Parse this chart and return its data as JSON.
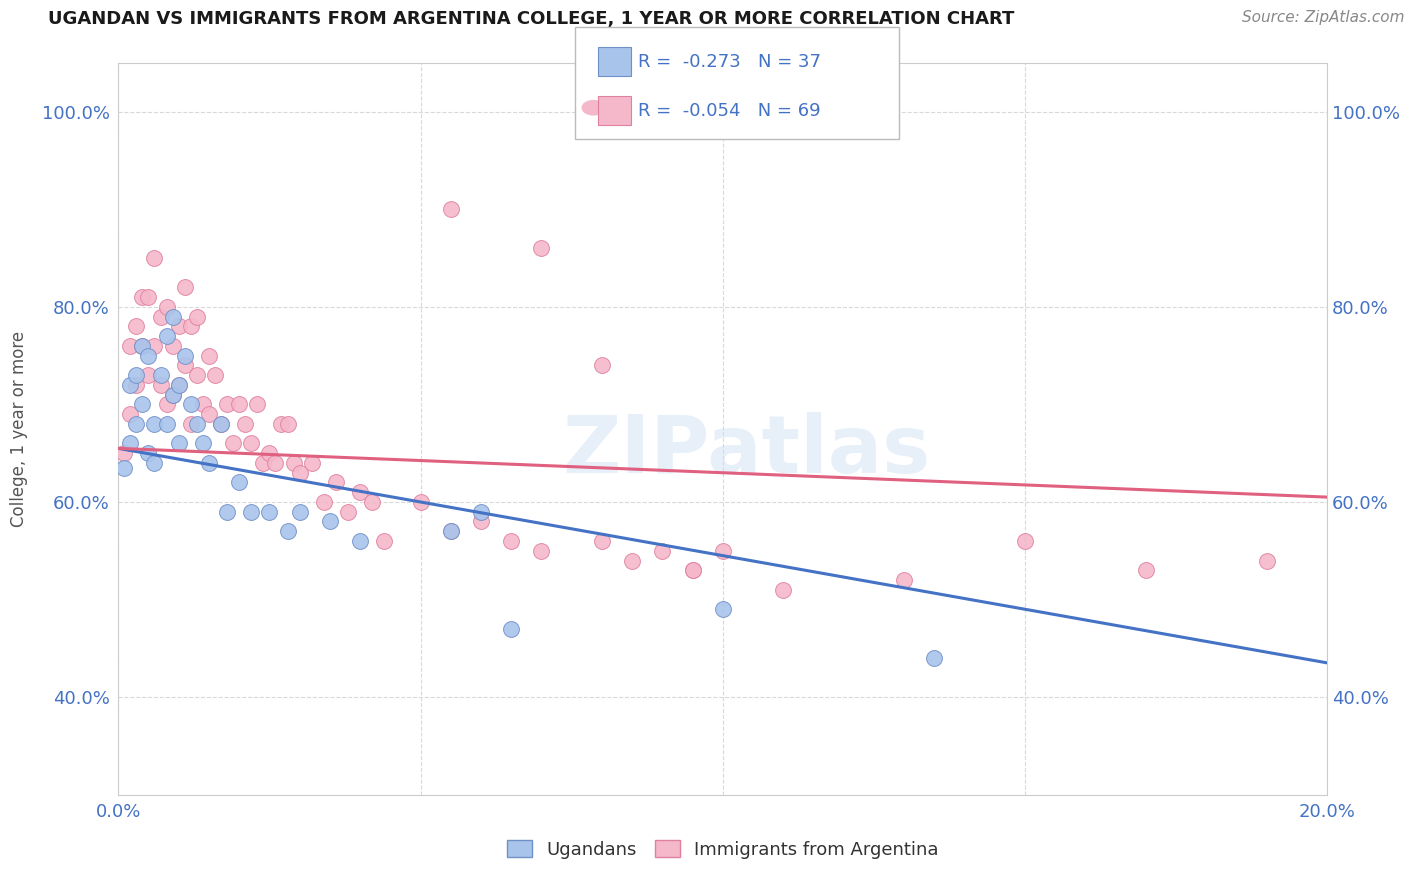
{
  "title": "UGANDAN VS IMMIGRANTS FROM ARGENTINA COLLEGE, 1 YEAR OR MORE CORRELATION CHART",
  "source_text": "Source: ZipAtlas.com",
  "ylabel": "College, 1 year or more",
  "xlim": [
    0.0,
    0.2
  ],
  "ylim": [
    0.3,
    1.05
  ],
  "x_ticks": [
    0.0,
    0.05,
    0.1,
    0.15,
    0.2
  ],
  "x_tick_labels": [
    "0.0%",
    "",
    "",
    "",
    "20.0%"
  ],
  "y_ticks": [
    0.4,
    0.6,
    0.8,
    1.0
  ],
  "y_tick_labels": [
    "40.0%",
    "60.0%",
    "80.0%",
    "100.0%"
  ],
  "r_ugandan": -0.273,
  "n_ugandan": 37,
  "r_argentina": -0.054,
  "n_argentina": 69,
  "ugandan_color": "#a8c4eb",
  "argentina_color": "#f5b8cb",
  "ugandan_edge": "#7090c8",
  "argentina_edge": "#e080a0",
  "trend_ugandan_color": "#4472c4",
  "trend_argentina_color": "#e06080",
  "watermark": "ZIPatlas",
  "ugandan_scatter_x": [
    0.001,
    0.002,
    0.002,
    0.003,
    0.003,
    0.004,
    0.004,
    0.005,
    0.005,
    0.006,
    0.006,
    0.007,
    0.008,
    0.008,
    0.009,
    0.009,
    0.01,
    0.01,
    0.011,
    0.012,
    0.013,
    0.014,
    0.015,
    0.017,
    0.018,
    0.02,
    0.022,
    0.025,
    0.028,
    0.03,
    0.035,
    0.04,
    0.055,
    0.06,
    0.065,
    0.1,
    0.135
  ],
  "ugandan_scatter_y": [
    0.635,
    0.66,
    0.72,
    0.73,
    0.68,
    0.76,
    0.7,
    0.75,
    0.65,
    0.68,
    0.64,
    0.73,
    0.68,
    0.77,
    0.71,
    0.79,
    0.66,
    0.72,
    0.75,
    0.7,
    0.68,
    0.66,
    0.64,
    0.68,
    0.59,
    0.62,
    0.59,
    0.59,
    0.57,
    0.59,
    0.58,
    0.56,
    0.57,
    0.59,
    0.47,
    0.49,
    0.44
  ],
  "argentina_scatter_x": [
    0.001,
    0.002,
    0.002,
    0.003,
    0.003,
    0.004,
    0.004,
    0.005,
    0.005,
    0.006,
    0.006,
    0.007,
    0.007,
    0.008,
    0.008,
    0.009,
    0.009,
    0.01,
    0.01,
    0.011,
    0.011,
    0.012,
    0.012,
    0.013,
    0.013,
    0.014,
    0.015,
    0.015,
    0.016,
    0.017,
    0.018,
    0.019,
    0.02,
    0.021,
    0.022,
    0.023,
    0.024,
    0.025,
    0.026,
    0.027,
    0.028,
    0.029,
    0.03,
    0.032,
    0.034,
    0.036,
    0.038,
    0.04,
    0.042,
    0.044,
    0.05,
    0.055,
    0.06,
    0.065,
    0.07,
    0.08,
    0.085,
    0.09,
    0.095,
    0.1,
    0.055,
    0.07,
    0.08,
    0.095,
    0.11,
    0.13,
    0.15,
    0.17,
    0.19
  ],
  "argentina_scatter_y": [
    0.65,
    0.69,
    0.76,
    0.72,
    0.78,
    0.81,
    0.76,
    0.73,
    0.81,
    0.85,
    0.76,
    0.79,
    0.72,
    0.8,
    0.7,
    0.76,
    0.71,
    0.78,
    0.72,
    0.82,
    0.74,
    0.78,
    0.68,
    0.73,
    0.79,
    0.7,
    0.75,
    0.69,
    0.73,
    0.68,
    0.7,
    0.66,
    0.7,
    0.68,
    0.66,
    0.7,
    0.64,
    0.65,
    0.64,
    0.68,
    0.68,
    0.64,
    0.63,
    0.64,
    0.6,
    0.62,
    0.59,
    0.61,
    0.6,
    0.56,
    0.6,
    0.57,
    0.58,
    0.56,
    0.55,
    0.56,
    0.54,
    0.55,
    0.53,
    0.55,
    0.9,
    0.86,
    0.74,
    0.53,
    0.51,
    0.52,
    0.56,
    0.53,
    0.54
  ],
  "background_color": "#ffffff",
  "grid_color": "#d0d0d0"
}
